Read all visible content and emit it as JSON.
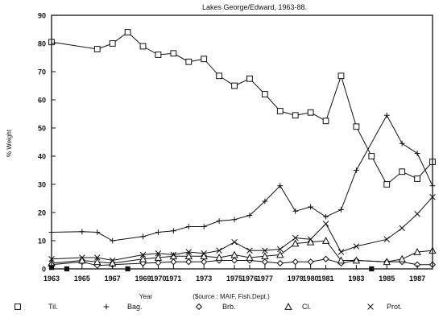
{
  "chart_data": {
    "type": "line",
    "title": "Lakes George/Edward, 1963-88.",
    "xlabel": "Year",
    "xlabel_source": "($ource : MAIF, Fish.Dept.)",
    "ylabel": "% Weight",
    "xlim": [
      1963,
      1988
    ],
    "ylim": [
      0,
      90
    ],
    "yticks": [
      0,
      10,
      20,
      30,
      40,
      50,
      60,
      70,
      80,
      90
    ],
    "xticks": [
      1963,
      1965,
      1967,
      1969,
      1970,
      1971,
      1973,
      1975,
      1976,
      1977,
      1979,
      1980,
      1981,
      1983,
      1985,
      1987
    ],
    "xtick_labels": [
      "1963",
      "1965",
      "1967",
      "1969",
      "1970",
      "1971",
      "1973",
      "1975",
      "1976",
      "1977",
      "1979",
      "1980",
      "1981",
      "1983",
      "1985",
      "1987"
    ],
    "grid": false,
    "legend_position": "bottom",
    "series": [
      {
        "name": "Til.",
        "marker": "square",
        "x": [
          1963,
          1966,
          1967,
          1968,
          1969,
          1970,
          1971,
          1972,
          1973,
          1974,
          1975,
          1976,
          1977,
          1978,
          1979,
          1980,
          1981,
          1982,
          1983,
          1984,
          1985,
          1986,
          1987,
          1988
        ],
        "y": [
          80.5,
          78,
          80,
          84,
          79,
          76,
          76.5,
          73.5,
          74.5,
          68.5,
          65,
          67.5,
          62,
          56,
          54.5,
          55.5,
          52.5,
          68.5,
          50.5,
          40,
          30,
          34.5,
          32,
          38
        ]
      },
      {
        "name": "Bag.",
        "marker": "plus",
        "x": [
          1963,
          1965,
          1966,
          1967,
          1969,
          1970,
          1971,
          1972,
          1973,
          1974,
          1975,
          1976,
          1977,
          1978,
          1979,
          1980,
          1981,
          1982,
          1983,
          1985,
          1986,
          1987,
          1988
        ],
        "y": [
          13,
          13.2,
          13,
          10,
          11.5,
          13,
          13.5,
          15,
          15,
          17,
          17.5,
          19,
          24,
          29.5,
          20.5,
          22,
          18.5,
          21,
          35,
          54.5,
          44.5,
          41,
          29.5
        ]
      },
      {
        "name": "Brb.",
        "marker": "diamond",
        "x": [
          1963,
          1965,
          1966,
          1967,
          1969,
          1970,
          1971,
          1972,
          1973,
          1974,
          1975,
          1976,
          1977,
          1978,
          1979,
          1980,
          1981,
          1982,
          1983,
          1985,
          1986,
          1987,
          1988
        ],
        "y": [
          1.5,
          2.5,
          1.2,
          1.5,
          2,
          2.2,
          2.5,
          2.5,
          2.5,
          3,
          3,
          3,
          2.5,
          2,
          2.5,
          2.5,
          3.5,
          2,
          3,
          2.5,
          2.5,
          1.5,
          1.5
        ]
      },
      {
        "name": "Cl.",
        "marker": "triangle",
        "x": [
          1963,
          1965,
          1966,
          1967,
          1969,
          1970,
          1971,
          1972,
          1973,
          1974,
          1975,
          1976,
          1977,
          1978,
          1979,
          1980,
          1981,
          1982,
          1983,
          1985,
          1986,
          1987,
          1988
        ],
        "y": [
          2,
          3,
          2.5,
          2,
          3.5,
          4,
          4.5,
          4.5,
          4.5,
          4,
          5,
          4,
          4.5,
          5,
          9,
          9.5,
          10,
          3,
          3,
          2.5,
          3.5,
          6,
          6.5
        ]
      },
      {
        "name": "Prot.",
        "marker": "x",
        "x": [
          1963,
          1965,
          1966,
          1967,
          1969,
          1970,
          1971,
          1972,
          1973,
          1974,
          1975,
          1976,
          1977,
          1978,
          1979,
          1980,
          1981,
          1982,
          1983,
          1985,
          1986,
          1987,
          1988
        ],
        "y": [
          3.5,
          4,
          4,
          3,
          5,
          5.5,
          5,
          6,
          5.5,
          6.5,
          9.5,
          6.5,
          6.5,
          7,
          11,
          10.5,
          16,
          6,
          8,
          10.5,
          14.5,
          19.5,
          25.5
        ]
      },
      {
        "name": "",
        "marker": "filled-square",
        "x": [
          1963,
          1964,
          1968,
          1984
        ],
        "y": [
          0.5,
          0,
          0,
          0
        ]
      }
    ]
  }
}
